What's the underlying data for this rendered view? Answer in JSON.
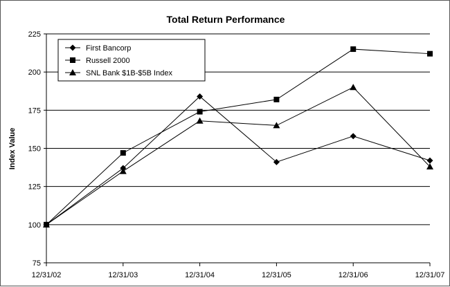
{
  "chart_data": {
    "type": "line",
    "title": "Total Return Performance",
    "xlabel": "",
    "ylabel": "Index Value",
    "categories": [
      "12/31/02",
      "12/31/03",
      "12/31/04",
      "12/31/05",
      "12/31/06",
      "12/31/07"
    ],
    "ylim": [
      75,
      225
    ],
    "yticks": [
      75,
      100,
      125,
      150,
      175,
      200,
      225
    ],
    "grid": true,
    "legend_position": "top-left",
    "series": [
      {
        "name": "First Bancorp",
        "marker": "diamond",
        "values": [
          100,
          137,
          184,
          141,
          158,
          142
        ]
      },
      {
        "name": "Russell 2000",
        "marker": "square",
        "values": [
          100,
          147,
          174,
          182,
          215,
          212
        ]
      },
      {
        "name": "SNL Bank $1B-$5B Index",
        "marker": "triangle",
        "values": [
          100,
          135,
          168,
          165,
          190,
          138
        ]
      }
    ]
  }
}
